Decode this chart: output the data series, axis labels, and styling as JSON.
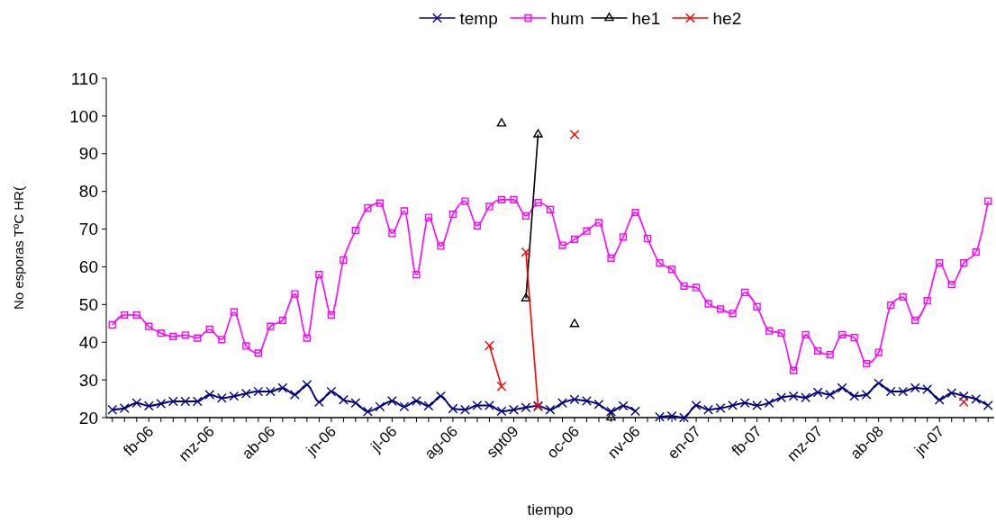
{
  "chart_data": {
    "type": "line",
    "xlabel": "tiempo",
    "ylabel": "No esporas  TºC  HR(",
    "categories": [
      null,
      null,
      null,
      "fb-06",
      null,
      null,
      null,
      null,
      "mz-06",
      null,
      null,
      null,
      null,
      "ab-06",
      null,
      null,
      null,
      null,
      "jn-06",
      null,
      null,
      null,
      null,
      "jl-06",
      null,
      null,
      null,
      null,
      "ag-06",
      null,
      null,
      null,
      null,
      "spt09",
      null,
      null,
      null,
      null,
      "oc-06",
      null,
      null,
      null,
      null,
      "nv-06",
      null,
      null,
      null,
      null,
      "en-07",
      null,
      null,
      null,
      null,
      "fb-07",
      null,
      null,
      null,
      null,
      "mz-07",
      null,
      null,
      null,
      null,
      "ab-08",
      null,
      null,
      null,
      null,
      "jn-07",
      null,
      null,
      null,
      null
    ],
    "series": [
      {
        "name": "temp",
        "color": "#000080",
        "marker": "cross",
        "values": [
          22.1,
          22.5,
          23.9,
          23.1,
          23.7,
          24.3,
          24.3,
          24.3,
          26.1,
          25.2,
          25.7,
          26.4,
          26.9,
          26.9,
          27.9,
          26.1,
          28.7,
          24.1,
          26.9,
          24.7,
          23.9,
          21.6,
          22.9,
          24.4,
          22.9,
          24.4,
          23.1,
          25.7,
          22.4,
          22.1,
          23.2,
          23.2,
          21.7,
          22.1,
          22.7,
          23.1,
          22.1,
          23.9,
          24.8,
          24.4,
          23.5,
          21.6,
          23.1,
          21.7,
          null,
          20.2,
          20.4,
          20.0,
          23.2,
          22.1,
          22.5,
          23.2,
          23.9,
          23.2,
          23.9,
          25.3,
          25.7,
          25.3,
          26.7,
          26.1,
          27.9,
          25.7,
          26.1,
          29.1,
          26.9,
          26.9,
          27.9,
          27.5,
          24.7,
          26.5,
          25.7,
          24.9,
          23.2
        ]
      },
      {
        "name": "hum",
        "color": "#ff00ff",
        "marker": "square",
        "values": [
          44.6,
          47.2,
          47.2,
          44.2,
          42.4,
          41.5,
          41.9,
          41.1,
          43.4,
          40.7,
          48,
          39,
          37.1,
          44.2,
          45.8,
          52.8,
          41.1,
          57.9,
          47.2,
          61.8,
          69.6,
          75.6,
          76.9,
          68.9,
          74.8,
          57.9,
          73.1,
          65.5,
          73.9,
          77.4,
          70.9,
          76,
          77.8,
          77.8,
          73.5,
          77,
          75.2,
          65.7,
          67.3,
          69.5,
          71.7,
          62.3,
          67.9,
          74.4,
          67.5,
          61,
          59.3,
          54.9,
          54.5,
          50.2,
          48.8,
          47.6,
          53.2,
          49.4,
          43,
          42.4,
          32.5,
          42,
          37.7,
          36.7,
          42,
          41.2,
          34.3,
          37.3,
          49.8,
          52,
          45.8,
          51,
          61,
          55.3,
          61,
          63.9,
          77.4
        ]
      },
      {
        "name": "he1",
        "color": "#000000",
        "marker": "triangle",
        "values": [
          null,
          null,
          null,
          null,
          null,
          null,
          null,
          null,
          null,
          null,
          null,
          null,
          null,
          null,
          null,
          null,
          null,
          null,
          null,
          null,
          null,
          null,
          null,
          null,
          null,
          null,
          null,
          null,
          null,
          null,
          null,
          null,
          98,
          null,
          51.6,
          95.1,
          null,
          null,
          44.8,
          null,
          null,
          20,
          null,
          null,
          null,
          null,
          null,
          null,
          null,
          null,
          null,
          null,
          null,
          null,
          null,
          null,
          null,
          null,
          null,
          null,
          null,
          null,
          null,
          null,
          null,
          null,
          null,
          null,
          null,
          null,
          null,
          null,
          null
        ]
      },
      {
        "name": "he2",
        "color": "#ff0000",
        "marker": "cross",
        "values": [
          null,
          null,
          null,
          null,
          null,
          null,
          null,
          null,
          null,
          null,
          null,
          null,
          null,
          null,
          null,
          null,
          null,
          null,
          null,
          null,
          null,
          null,
          null,
          null,
          null,
          null,
          null,
          null,
          null,
          null,
          null,
          39.1,
          28.3,
          null,
          63.9,
          22.9,
          null,
          null,
          95.1,
          null,
          null,
          null,
          null,
          null,
          null,
          null,
          null,
          null,
          null,
          null,
          null,
          null,
          null,
          null,
          null,
          null,
          null,
          null,
          null,
          null,
          null,
          null,
          null,
          null,
          null,
          null,
          null,
          null,
          null,
          null,
          24.1,
          null,
          null
        ]
      }
    ],
    "ylim": [
      20,
      110
    ],
    "yticks": [
      20,
      30,
      40,
      50,
      60,
      70,
      80,
      90,
      100,
      110
    ],
    "legend": "top",
    "grid": false
  }
}
